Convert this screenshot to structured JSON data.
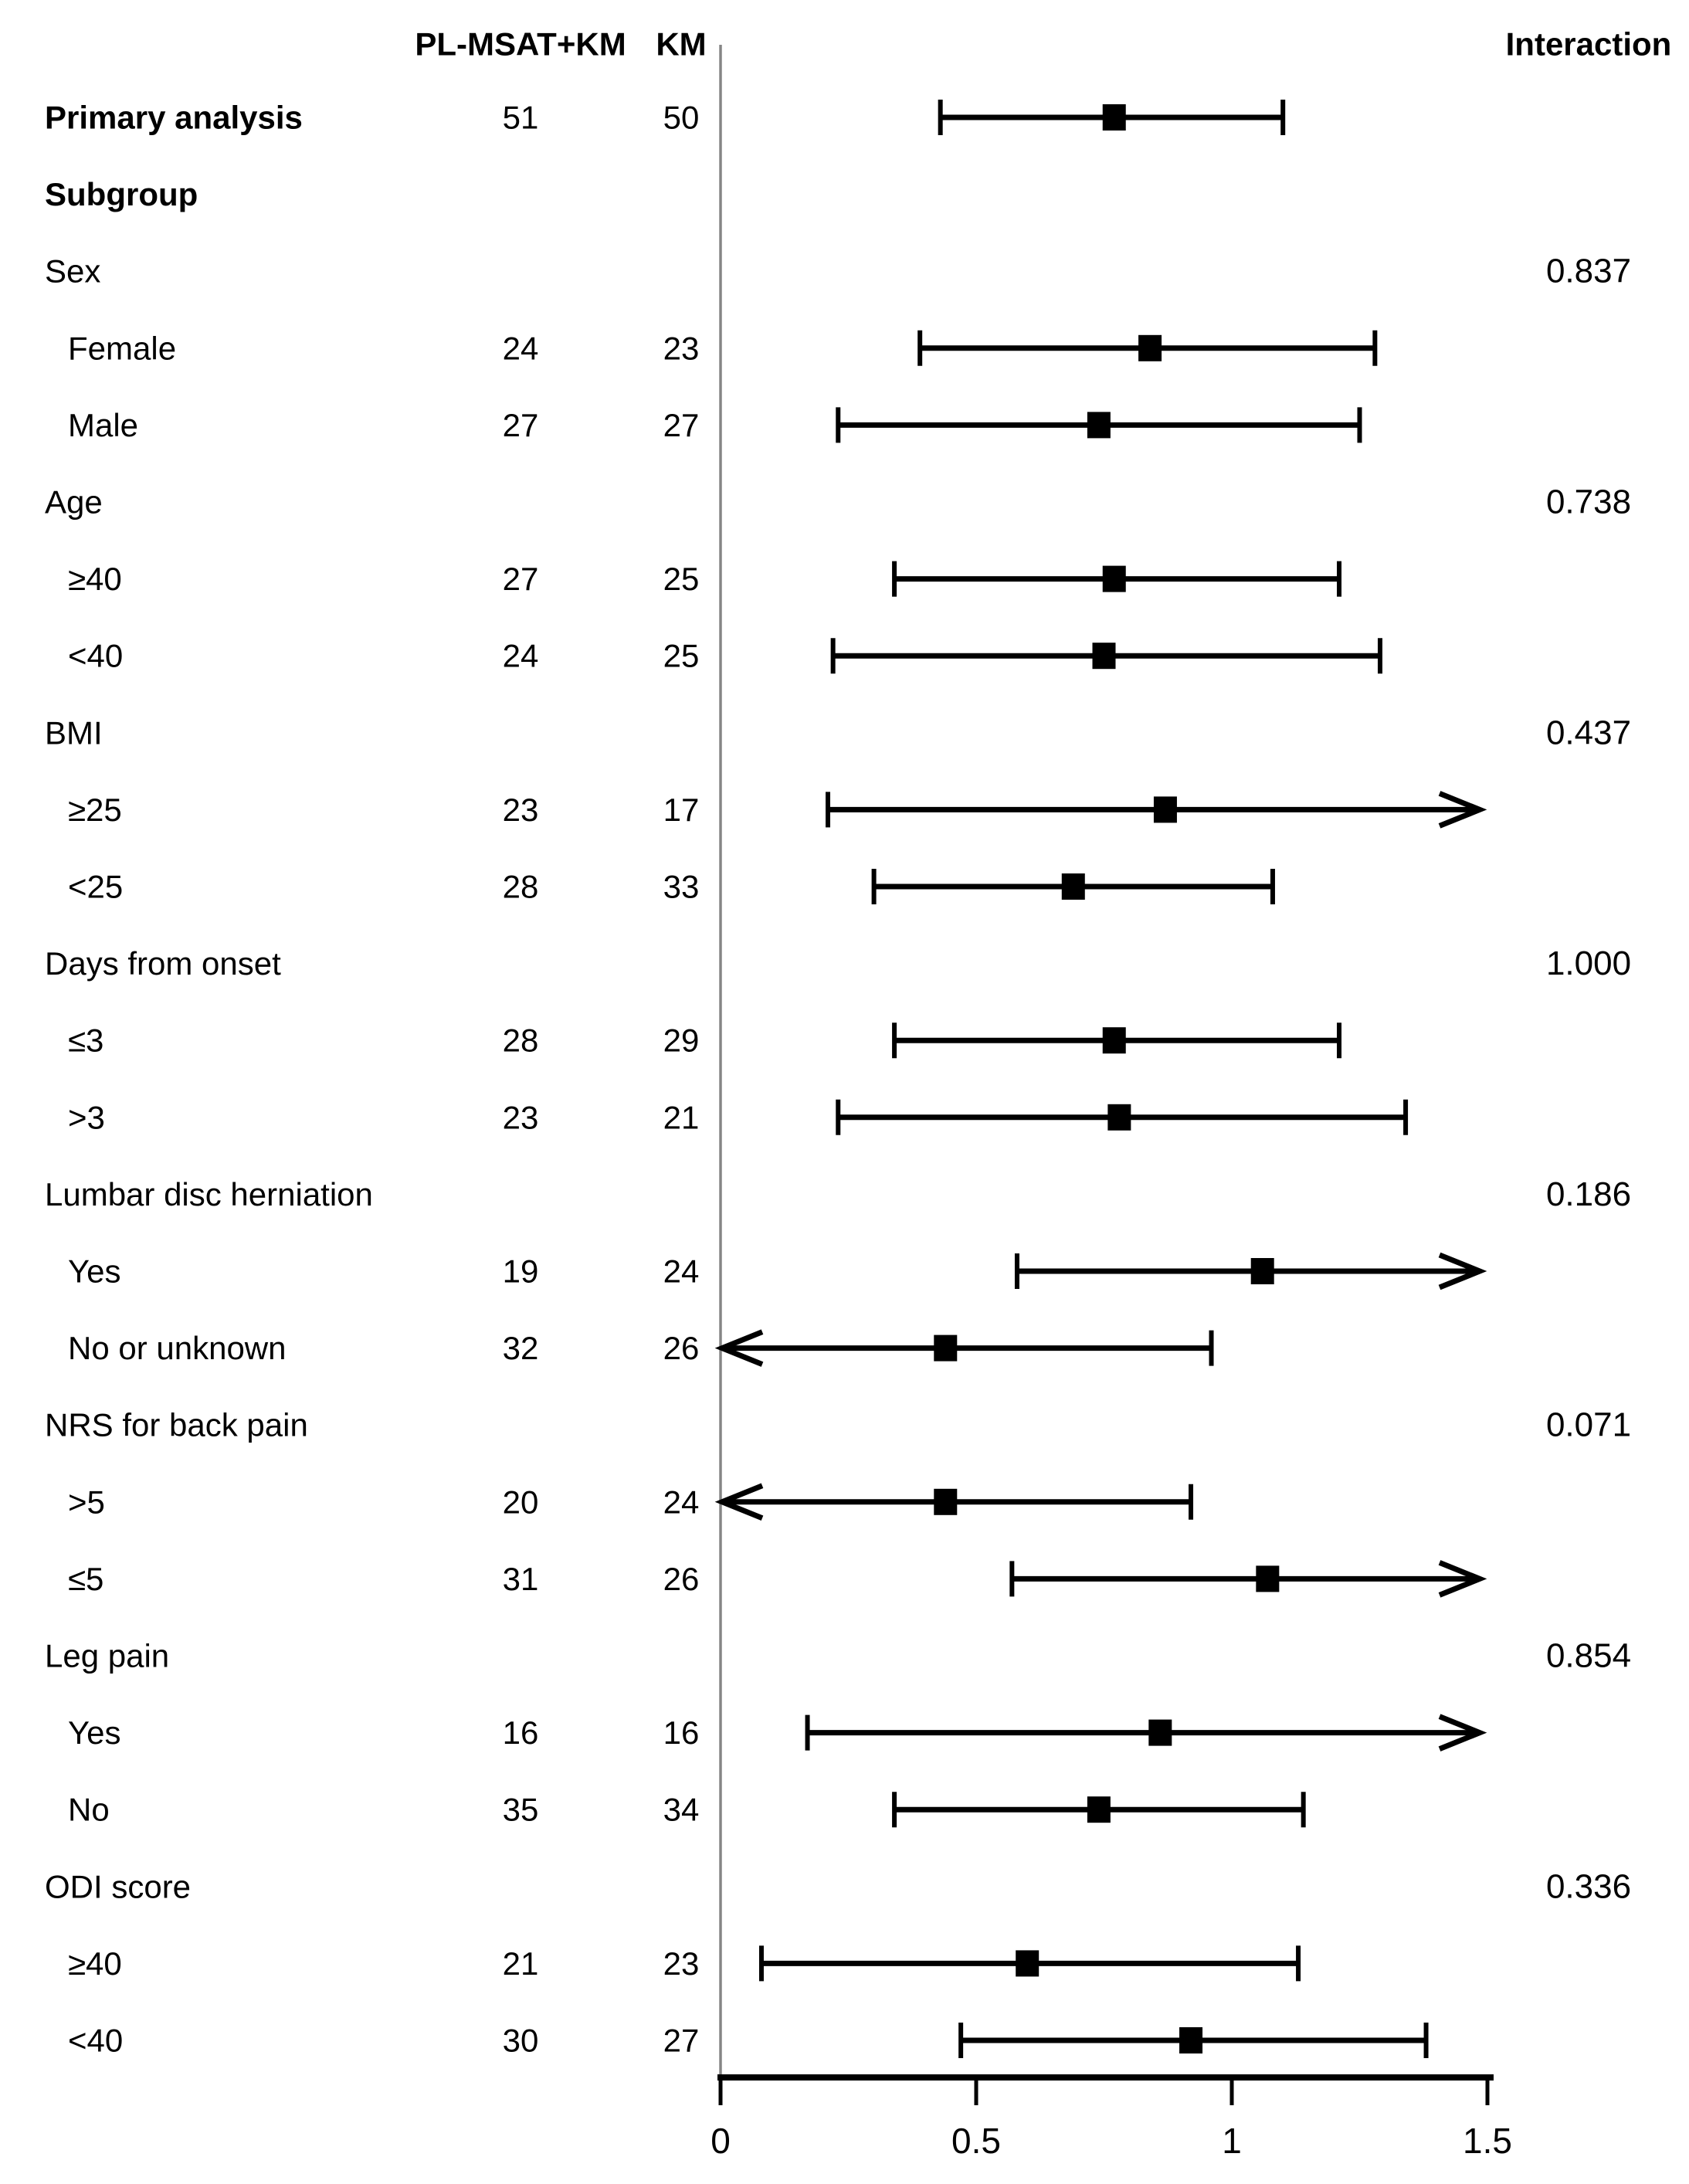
{
  "header": {
    "treatment_col": "PL-MSAT+KM",
    "control_col": "KM",
    "interaction_col": "Interaction"
  },
  "colors": {
    "marker": "#000000",
    "ci_line": "#000000",
    "reference_line": "#858585",
    "axis": "#000000",
    "background": "#ffffff"
  },
  "chart_data": {
    "type": "scatter",
    "description": "Forest plot of subgroup analysis with point estimates (black squares) and horizontal confidence interval bars; arrows indicate CIs truncated at the plot range.",
    "legend_position": "none",
    "grid": false,
    "x_axis": {
      "range": [
        0,
        1.5
      ],
      "ticks": [
        0,
        0.5,
        1,
        1.5
      ],
      "tick_labels": [
        "0",
        "0.5",
        "1",
        "1.5"
      ],
      "reference_line_x": 0
    },
    "columns": [
      "label",
      "PL-MSAT+KM",
      "KM",
      "ci_low",
      "estimate",
      "ci_high",
      "interaction_p"
    ],
    "rows": [
      {
        "label": "Primary analysis",
        "style": "bold",
        "indent": 0,
        "n_treat": "51",
        "n_ctrl": "50",
        "ci_low": 0.43,
        "estimate": 0.77,
        "ci_high": 1.1,
        "low_truncated": false,
        "high_truncated": false,
        "interaction_p": ""
      },
      {
        "label": "Subgroup",
        "style": "bold",
        "indent": 0,
        "n_treat": "",
        "n_ctrl": "",
        "ci_low": null,
        "estimate": null,
        "ci_high": null,
        "low_truncated": false,
        "high_truncated": false,
        "interaction_p": ""
      },
      {
        "label": "Sex",
        "style": "normal",
        "indent": 0,
        "n_treat": "",
        "n_ctrl": "",
        "ci_low": null,
        "estimate": null,
        "ci_high": null,
        "low_truncated": false,
        "high_truncated": false,
        "interaction_p": "0.837"
      },
      {
        "label": "Female",
        "style": "normal",
        "indent": 1,
        "n_treat": "24",
        "n_ctrl": "23",
        "ci_low": 0.39,
        "estimate": 0.84,
        "ci_high": 1.28,
        "low_truncated": false,
        "high_truncated": false,
        "interaction_p": ""
      },
      {
        "label": "Male",
        "style": "normal",
        "indent": 1,
        "n_treat": "27",
        "n_ctrl": "27",
        "ci_low": 0.23,
        "estimate": 0.74,
        "ci_high": 1.25,
        "low_truncated": false,
        "high_truncated": false,
        "interaction_p": ""
      },
      {
        "label": "Age",
        "style": "normal",
        "indent": 0,
        "n_treat": "",
        "n_ctrl": "",
        "ci_low": null,
        "estimate": null,
        "ci_high": null,
        "low_truncated": false,
        "high_truncated": false,
        "interaction_p": "0.738"
      },
      {
        "label": "≥40",
        "style": "normal",
        "indent": 1,
        "n_treat": "27",
        "n_ctrl": "25",
        "ci_low": 0.34,
        "estimate": 0.77,
        "ci_high": 1.21,
        "low_truncated": false,
        "high_truncated": false,
        "interaction_p": ""
      },
      {
        "label": "<40",
        "style": "normal",
        "indent": 1,
        "n_treat": "24",
        "n_ctrl": "25",
        "ci_low": 0.22,
        "estimate": 0.75,
        "ci_high": 1.29,
        "low_truncated": false,
        "high_truncated": false,
        "interaction_p": ""
      },
      {
        "label": "BMI",
        "style": "normal",
        "indent": 0,
        "n_treat": "",
        "n_ctrl": "",
        "ci_low": null,
        "estimate": null,
        "ci_high": null,
        "low_truncated": false,
        "high_truncated": false,
        "interaction_p": "0.437"
      },
      {
        "label": "≥25",
        "style": "normal",
        "indent": 1,
        "n_treat": "23",
        "n_ctrl": "17",
        "ci_low": 0.21,
        "estimate": 0.87,
        "ci_high": null,
        "low_truncated": false,
        "high_truncated": true,
        "interaction_p": ""
      },
      {
        "label": "<25",
        "style": "normal",
        "indent": 1,
        "n_treat": "28",
        "n_ctrl": "33",
        "ci_low": 0.3,
        "estimate": 0.69,
        "ci_high": 1.08,
        "low_truncated": false,
        "high_truncated": false,
        "interaction_p": ""
      },
      {
        "label": "Days from onset",
        "style": "normal",
        "indent": 0,
        "n_treat": "",
        "n_ctrl": "",
        "ci_low": null,
        "estimate": null,
        "ci_high": null,
        "low_truncated": false,
        "high_truncated": false,
        "interaction_p": "1.000"
      },
      {
        "label": "≤3",
        "style": "normal",
        "indent": 1,
        "n_treat": "28",
        "n_ctrl": "29",
        "ci_low": 0.34,
        "estimate": 0.77,
        "ci_high": 1.21,
        "low_truncated": false,
        "high_truncated": false,
        "interaction_p": ""
      },
      {
        "label": ">3",
        "style": "normal",
        "indent": 1,
        "n_treat": "23",
        "n_ctrl": "21",
        "ci_low": 0.23,
        "estimate": 0.78,
        "ci_high": 1.34,
        "low_truncated": false,
        "high_truncated": false,
        "interaction_p": ""
      },
      {
        "label": "Lumbar disc herniation",
        "style": "normal",
        "indent": 0,
        "n_treat": "",
        "n_ctrl": "",
        "ci_low": null,
        "estimate": null,
        "ci_high": null,
        "low_truncated": false,
        "high_truncated": false,
        "interaction_p": "0.186"
      },
      {
        "label": "Yes",
        "style": "normal",
        "indent": 1,
        "n_treat": "19",
        "n_ctrl": "24",
        "ci_low": 0.58,
        "estimate": 1.06,
        "ci_high": null,
        "low_truncated": false,
        "high_truncated": true,
        "interaction_p": ""
      },
      {
        "label": "No or unknown",
        "style": "normal",
        "indent": 1,
        "n_treat": "32",
        "n_ctrl": "26",
        "ci_low": null,
        "estimate": 0.44,
        "ci_high": 0.96,
        "low_truncated": true,
        "high_truncated": false,
        "interaction_p": ""
      },
      {
        "label": "NRS for back pain",
        "style": "normal",
        "indent": 0,
        "n_treat": "",
        "n_ctrl": "",
        "ci_low": null,
        "estimate": null,
        "ci_high": null,
        "low_truncated": false,
        "high_truncated": false,
        "interaction_p": "0.071"
      },
      {
        "label": ">5",
        "style": "normal",
        "indent": 1,
        "n_treat": "20",
        "n_ctrl": "24",
        "ci_low": null,
        "estimate": 0.44,
        "ci_high": 0.92,
        "low_truncated": true,
        "high_truncated": false,
        "interaction_p": ""
      },
      {
        "label": "≤5",
        "style": "normal",
        "indent": 1,
        "n_treat": "31",
        "n_ctrl": "26",
        "ci_low": 0.57,
        "estimate": 1.07,
        "ci_high": null,
        "low_truncated": false,
        "high_truncated": true,
        "interaction_p": ""
      },
      {
        "label": "Leg pain",
        "style": "normal",
        "indent": 0,
        "n_treat": "",
        "n_ctrl": "",
        "ci_low": null,
        "estimate": null,
        "ci_high": null,
        "low_truncated": false,
        "high_truncated": false,
        "interaction_p": "0.854"
      },
      {
        "label": "Yes",
        "style": "normal",
        "indent": 1,
        "n_treat": "16",
        "n_ctrl": "16",
        "ci_low": 0.17,
        "estimate": 0.86,
        "ci_high": null,
        "low_truncated": false,
        "high_truncated": true,
        "interaction_p": ""
      },
      {
        "label": "No",
        "style": "normal",
        "indent": 1,
        "n_treat": "35",
        "n_ctrl": "34",
        "ci_low": 0.34,
        "estimate": 0.74,
        "ci_high": 1.14,
        "low_truncated": false,
        "high_truncated": false,
        "interaction_p": ""
      },
      {
        "label": "ODI score",
        "style": "normal",
        "indent": 0,
        "n_treat": "",
        "n_ctrl": "",
        "ci_low": null,
        "estimate": null,
        "ci_high": null,
        "low_truncated": false,
        "high_truncated": false,
        "interaction_p": "0.336"
      },
      {
        "label": "≥40",
        "style": "normal",
        "indent": 1,
        "n_treat": "21",
        "n_ctrl": "23",
        "ci_low": 0.08,
        "estimate": 0.6,
        "ci_high": 1.13,
        "low_truncated": false,
        "high_truncated": false,
        "interaction_p": ""
      },
      {
        "label": "<40",
        "style": "normal",
        "indent": 1,
        "n_treat": "30",
        "n_ctrl": "27",
        "ci_low": 0.47,
        "estimate": 0.92,
        "ci_high": 1.38,
        "low_truncated": false,
        "high_truncated": false,
        "interaction_p": ""
      }
    ]
  }
}
